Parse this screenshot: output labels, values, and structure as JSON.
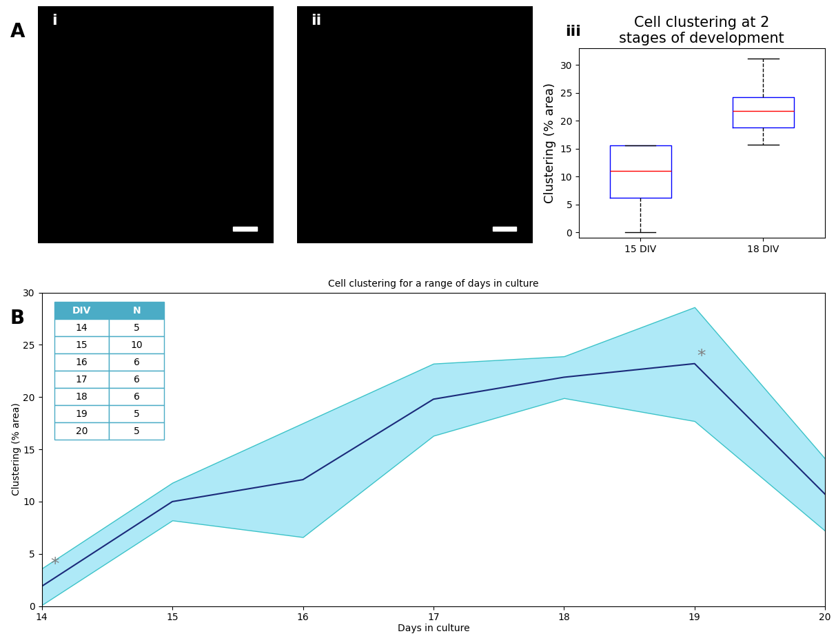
{
  "chart_data": [
    {
      "type": "image",
      "panel": "A",
      "label": "i"
    },
    {
      "type": "image",
      "label": "ii"
    },
    {
      "type": "box",
      "label": "iii",
      "title": "Cell clustering at 2\nstages of development",
      "y_label": "Clustering (% area)",
      "categories": [
        "15 DIV",
        "18 DIV"
      ],
      "stats": [
        {
          "whislo": 0,
          "q1": 6.2,
          "med": 11,
          "q3": 15.6,
          "whishi": 15.6
        },
        {
          "whislo": 15.7,
          "q1": 18.8,
          "med": 21.8,
          "q3": 24.2,
          "whishi": 31.2
        }
      ],
      "color": "#0000ff",
      "median_color": "#ff0000",
      "whisker_color": "#000000",
      "ylim": [
        -1,
        33
      ],
      "yticks": [
        0,
        5,
        10,
        15,
        20,
        25,
        30
      ]
    },
    {
      "type": "line",
      "panel": "B",
      "title": "Cell clustering for a range of days in culture",
      "x_label": "Days in culture",
      "y_label": "Clustering (% area)",
      "x": [
        14,
        15,
        16,
        17,
        18,
        19,
        20
      ],
      "values": [
        1.9,
        10.0,
        12.1,
        19.8,
        21.9,
        23.2,
        10.7
      ],
      "lower": [
        0.1,
        8.2,
        6.6,
        16.3,
        19.9,
        17.7,
        7.2
      ],
      "upper": [
        3.6,
        11.8,
        17.5,
        23.2,
        23.9,
        28.6,
        14.1
      ],
      "color": "#1b2a7a",
      "band_color": "#aee9f7",
      "band_edge_color": "#3cc3c8",
      "xlim": [
        14,
        20
      ],
      "xticks": [
        14,
        15,
        16,
        17,
        18,
        19,
        20
      ],
      "ylim": [
        0,
        30
      ],
      "yticks": [
        0,
        5,
        10,
        15,
        20,
        25,
        30
      ],
      "annotations": [
        {
          "text": "*",
          "x": 14.1,
          "y": 4.0
        },
        {
          "text": "*",
          "x": 19.05,
          "y": 23.9
        }
      ],
      "table": {
        "header": [
          "DIV",
          "N"
        ],
        "rows": [
          [
            "14",
            "5"
          ],
          [
            "15",
            "10"
          ],
          [
            "16",
            "6"
          ],
          [
            "17",
            "6"
          ],
          [
            "18",
            "6"
          ],
          [
            "19",
            "5"
          ],
          [
            "20",
            "5"
          ]
        ],
        "header_color": "#4bacc6"
      }
    }
  ]
}
